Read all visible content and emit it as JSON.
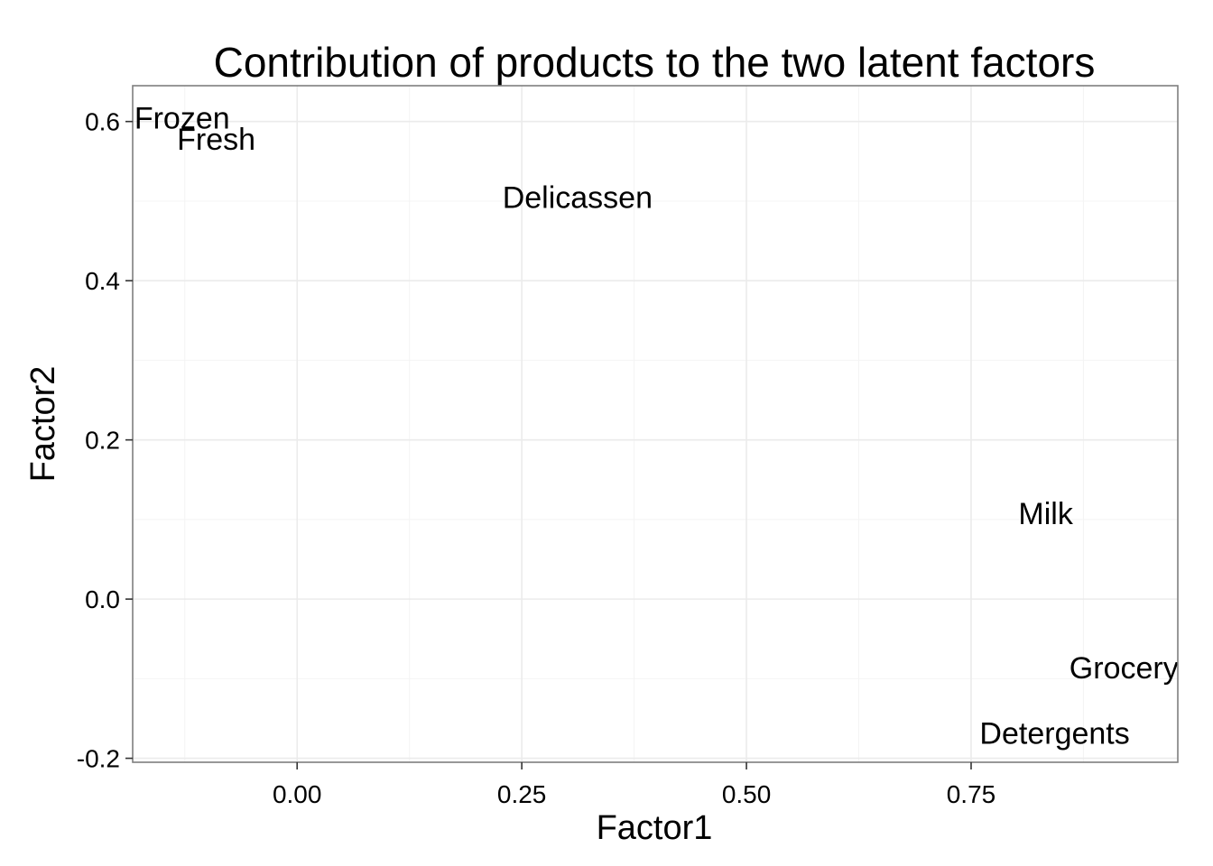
{
  "chart_data": {
    "type": "scatter",
    "title": "Contribution of products to the two latent factors",
    "xlabel": "Factor1",
    "ylabel": "Factor2",
    "xlim": [
      -0.183,
      0.98
    ],
    "ylim": [
      -0.205,
      0.645
    ],
    "xticks": [
      0.0,
      0.25,
      0.5,
      0.75
    ],
    "xtick_labels": [
      "0.00",
      "0.25",
      "0.50",
      "0.75"
    ],
    "yticks": [
      -0.2,
      0.0,
      0.2,
      0.4,
      0.6
    ],
    "ytick_labels": [
      "-0.2",
      "0.0",
      "0.2",
      "0.4",
      "0.6"
    ],
    "grid": true,
    "points": [
      {
        "label": "Frozen",
        "x": -0.128,
        "y": 0.605
      },
      {
        "label": "Fresh",
        "x": -0.09,
        "y": 0.578
      },
      {
        "label": "Delicassen",
        "x": 0.312,
        "y": 0.505
      },
      {
        "label": "Milk",
        "x": 0.833,
        "y": 0.108
      },
      {
        "label": "Grocery",
        "x": 0.92,
        "y": -0.086
      },
      {
        "label": "Detergents",
        "x": 0.843,
        "y": -0.168
      }
    ]
  }
}
